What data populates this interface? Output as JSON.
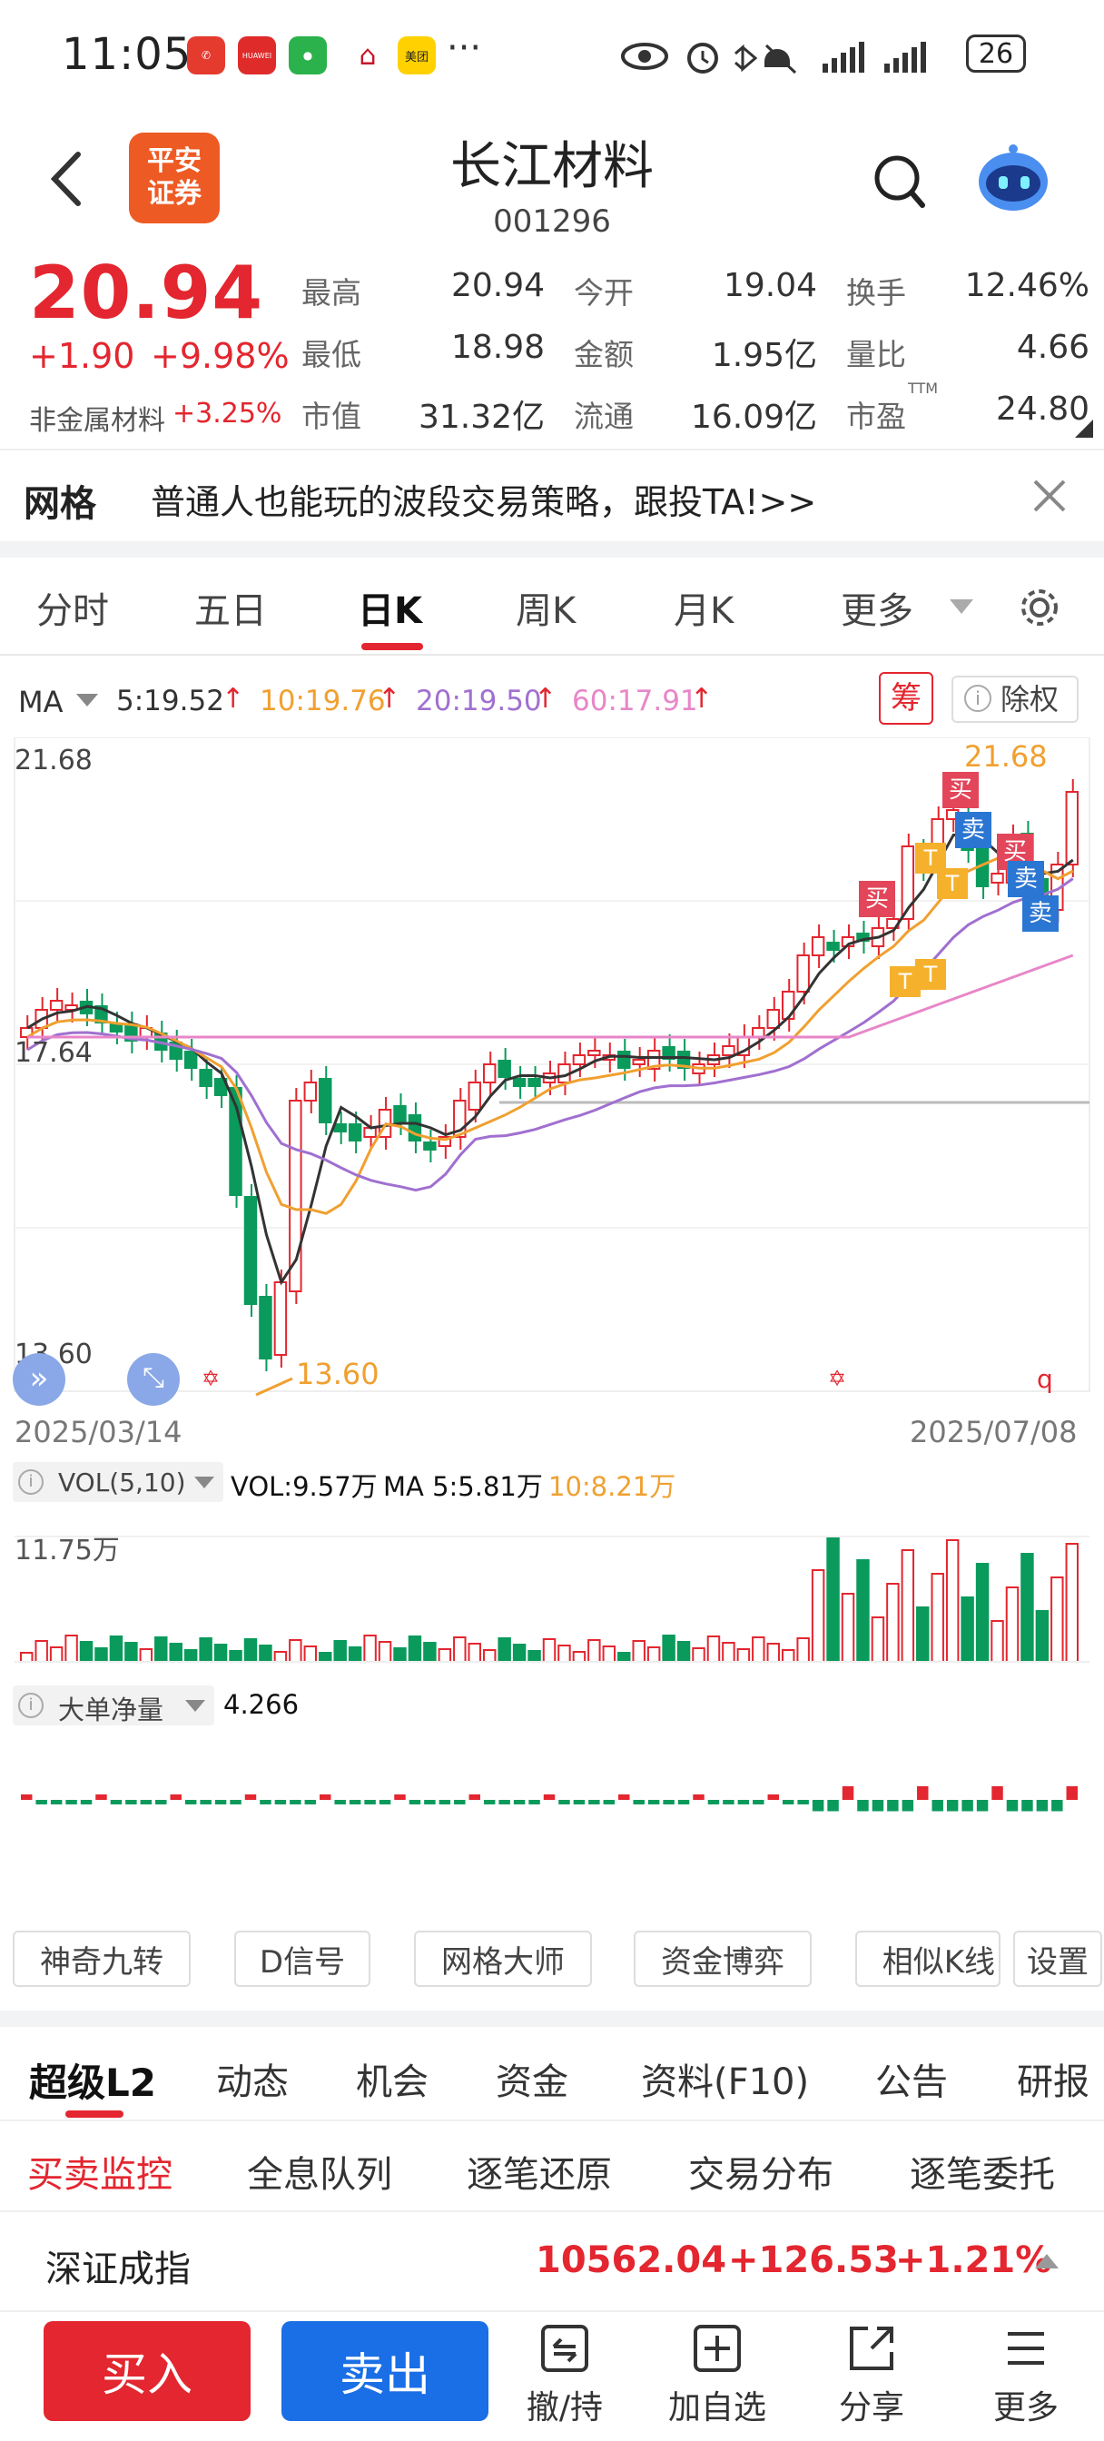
{
  "status_bar": {
    "time": "11:05",
    "battery": "26",
    "app_icons": [
      "missed-call-icon",
      "huawei-icon",
      "wechat-icon",
      "bank-icon",
      "meituan-icon"
    ],
    "meituan_label": "美团",
    "huawei_label": "HUAWEI",
    "more": "···"
  },
  "header": {
    "broker_logo": "平安\n证券",
    "stock_name": "长江材料",
    "stock_code": "001296"
  },
  "quote": {
    "price": "20.94",
    "change": "+1.90",
    "change_pct": "+9.98%",
    "sector": "非金属材料",
    "sector_change": "+3.25%",
    "fields": [
      {
        "label": "最高",
        "value": "20.94",
        "color": "red"
      },
      {
        "label": "今开",
        "value": "19.04",
        "color": "plain"
      },
      {
        "label": "换手",
        "value": "12.46%",
        "color": "plain"
      },
      {
        "label": "最低",
        "value": "18.98",
        "color": "green"
      },
      {
        "label": "金额",
        "value": "1.95亿",
        "color": "plain"
      },
      {
        "label": "量比",
        "value": "4.66",
        "color": "plain"
      },
      {
        "label": "市值",
        "value": "31.32亿",
        "color": "plain"
      },
      {
        "label": "流通",
        "value": "16.09亿",
        "color": "plain"
      },
      {
        "label": "市盈",
        "value": "24.80",
        "color": "plain",
        "sup": "TTM"
      }
    ]
  },
  "banner": {
    "tag": "网格",
    "text": "普通人也能玩的波段交易策略，跟投TA!>>"
  },
  "tabs": [
    "分时",
    "五日",
    "日K",
    "周K",
    "月K",
    "更多"
  ],
  "active_tab": "日K",
  "ma_legend": {
    "label": "MA",
    "items": [
      {
        "text": "5:19.52",
        "color": "#333333"
      },
      {
        "text": "10:19.76",
        "color": "#f0a030"
      },
      {
        "text": "20:19.50",
        "color": "#a070d0"
      },
      {
        "text": "60:17.91",
        "color": "#e886c8"
      }
    ],
    "chip_label": "筹",
    "exright_label": "除权"
  },
  "kline": {
    "y_max_label": "21.68",
    "y_min_label": "13.60",
    "ref_label": "17.64",
    "high_marker": "21.68",
    "low_marker": "13.60",
    "start_date": "2025/03/14",
    "end_date": "2025/07/08",
    "signals": [
      "买",
      "卖",
      "买",
      "卖",
      "卖",
      "买",
      "T",
      "T",
      "T",
      "T"
    ]
  },
  "volume": {
    "title": "VOL(5,10)",
    "vol_text": "VOL:9.57万",
    "ma5_text": "MA 5:5.81万",
    "ma10_text": "10:8.21万",
    "y_label": "11.75万"
  },
  "net_flow": {
    "title": "大单净量",
    "value": "4.266"
  },
  "indicator_buttons": [
    "神奇九转",
    "D信号",
    "网格大师",
    "资金博弈",
    "相似K线",
    "设置"
  ],
  "l2_tabs": [
    "超级L2",
    "动态",
    "机会",
    "资金",
    "资料(F10)",
    "公告",
    "研报"
  ],
  "l2_subtabs": [
    "买卖监控",
    "全息队列",
    "逐笔还原",
    "交易分布",
    "逐笔委托"
  ],
  "index_bar": {
    "name": "深证成指",
    "value": "10562.04",
    "change": "+126.53",
    "pct": "+1.21%"
  },
  "bottom": {
    "buy": "买入",
    "sell": "卖出",
    "items": [
      "撤/持",
      "加自选",
      "分享",
      "更多"
    ]
  },
  "colors": {
    "up": "#e3262f",
    "down": "#0a9a5c",
    "accent_blue": "#1a6fe6",
    "tab_underline": "#e3262f"
  },
  "chart_data": {
    "type": "candlestick",
    "x_range": [
      "2025/03/14",
      "2025/07/08"
    ],
    "ylim": [
      13.6,
      21.68
    ],
    "reference_price": 17.64,
    "high": 21.68,
    "low": 13.6,
    "ma": {
      "MA5": 19.52,
      "MA10": 19.76,
      "MA20": 19.5,
      "MA60": 17.91
    }
  }
}
